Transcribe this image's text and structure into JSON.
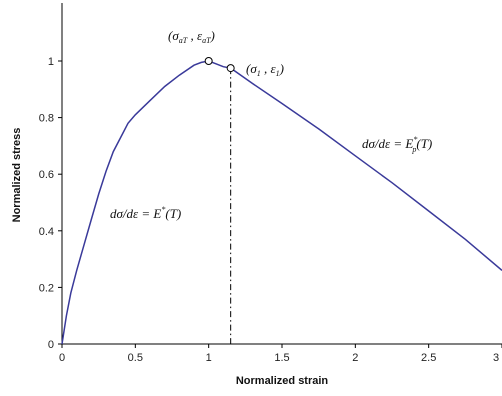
{
  "chart_data": {
    "type": "line",
    "xlabel": "Normalized strain",
    "ylabel": "Normalized stress",
    "xlim": [
      0,
      3
    ],
    "ylim": [
      0,
      1.15
    ],
    "x_ticks": [
      "0",
      "0.5",
      "1",
      "1.5",
      "2",
      "2.5",
      "3"
    ],
    "y_ticks": [
      "0",
      "0.2",
      "0.4",
      "0.6",
      "0.8",
      "1"
    ],
    "grid": false,
    "legend": "none",
    "line_color": "#3a3a9a",
    "series": [
      {
        "x": [
          0,
          0.03,
          0.06,
          0.1,
          0.15,
          0.2,
          0.25,
          0.3,
          0.35,
          0.4,
          0.45,
          0.5,
          0.6,
          0.7,
          0.8,
          0.9,
          0.95,
          1.0,
          1.05,
          1.1,
          1.15,
          1.3,
          1.5,
          1.75,
          2.0,
          2.25,
          2.5,
          2.75,
          3.0
        ],
        "y": [
          0,
          0.1,
          0.18,
          0.26,
          0.35,
          0.44,
          0.53,
          0.61,
          0.68,
          0.73,
          0.78,
          0.81,
          0.86,
          0.91,
          0.95,
          0.985,
          0.995,
          1.0,
          0.99,
          0.98,
          0.975,
          0.92,
          0.85,
          0.76,
          0.665,
          0.57,
          0.47,
          0.37,
          0.26
        ]
      }
    ],
    "markers": [
      {
        "x": 1.0,
        "y": 1.0,
        "label": "(σ",
        "sub1": "aT",
        "mid": " , ε",
        "sub2": "aT",
        "end": ")"
      },
      {
        "x": 1.15,
        "y": 0.975,
        "label": "(σ",
        "sub1": "1",
        "mid": " , ε",
        "sub2": "1",
        "end": ")"
      }
    ],
    "dashdot_line": {
      "x": 1.15,
      "y_from": 0,
      "y_to": 0.975
    },
    "annotations": [
      {
        "text": "dσ/dε = E",
        "sup": "*",
        "end": "(T)"
      },
      {
        "text": "dσ/dε = E",
        "sup": "*",
        "sub": "p",
        "end": "(T)"
      }
    ]
  }
}
